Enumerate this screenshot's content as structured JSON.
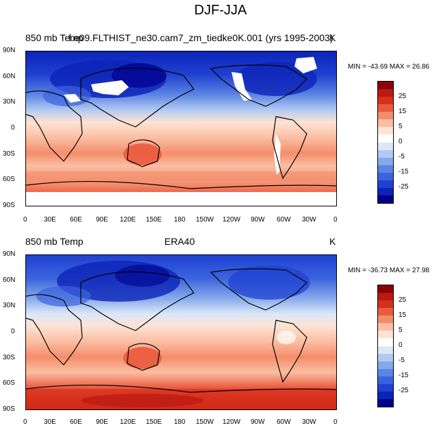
{
  "title": "DJF-JJA",
  "panels": [
    {
      "id": "top",
      "left_label": "850 mb Temp",
      "center_label": "f.e09.FLTHIST_ne30.cam7_zm_tiedke0K.001 (yrs 1995-2003)",
      "right_label": "K",
      "stats": "MIN = -43.69 MAX =  26.86"
    },
    {
      "id": "bottom",
      "left_label": "850 mb Temp",
      "center_label": "ERA40",
      "right_label": "K",
      "stats": "MIN = -36.73 MAX =  27.98"
    }
  ],
  "lat_ticks": [
    "90N",
    "60N",
    "30N",
    "0",
    "30S",
    "60S",
    "90S"
  ],
  "lon_ticks": [
    "0",
    "30E",
    "60E",
    "90E",
    "120E",
    "150E",
    "180",
    "150W",
    "120W",
    "90W",
    "60W",
    "30W",
    "0"
  ],
  "colorbar": {
    "labels": [
      "25",
      "15",
      "5",
      "0",
      "-5",
      "-15",
      "-25"
    ],
    "colors": [
      "#8a0006",
      "#bb1a12",
      "#d7301c",
      "#ea5a3e",
      "#f48d6b",
      "#fbbea3",
      "#fde3d3",
      "#ffffff",
      "#dbe7f8",
      "#b2caf2",
      "#86a9ea",
      "#5b84e3",
      "#3b63dd",
      "#1f41d2",
      "#0d24b8",
      "#00008a"
    ]
  },
  "chart_data": {
    "type": "heatmap",
    "title": "DJF-JJA",
    "variable": "850 mb Temp",
    "units": "K",
    "panels": [
      {
        "name": "f.e09.FLTHIST_ne30.cam7_zm_tiedke0K.001 (yrs 1995-2003)",
        "min": -43.69,
        "max": 26.86
      },
      {
        "name": "ERA40",
        "min": -36.73,
        "max": 27.98
      }
    ],
    "colorbar_levels": [
      -30,
      -25,
      -20,
      -15,
      -10,
      -5,
      -2,
      0,
      2,
      5,
      10,
      15,
      20,
      25,
      30
    ],
    "colorbar_tick_labels": [
      25,
      15,
      5,
      0,
      -5,
      -15,
      -25
    ],
    "xaxis": "longitude 0 to 360",
    "yaxis": "latitude 90S to 90N"
  }
}
